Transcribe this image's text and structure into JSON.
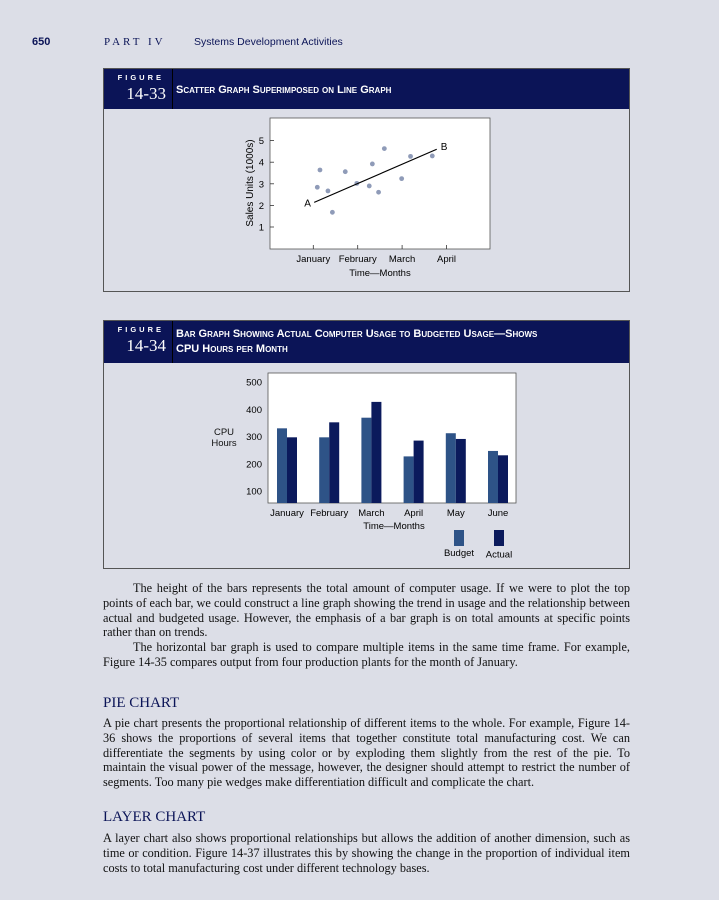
{
  "header": {
    "page_number": "650",
    "part": "PART IV",
    "section": "Systems Development Activities"
  },
  "figures": [
    {
      "word": "FIGURE",
      "number": "14-33",
      "title": "Scatter Graph Superimposed on Line Graph"
    },
    {
      "word": "FIGURE",
      "number": "14-34",
      "title_line1": "Bar Graph Showing Actual Computer Usage to Budgeted Usage—Shows",
      "title_line2": "CPU Hours per Month"
    }
  ],
  "chart_data": [
    {
      "type": "scatter",
      "ylabel": "Sales Units (1000s)",
      "xlabel": "Time—Months",
      "x_ticks": [
        "January",
        "February",
        "March",
        "April"
      ],
      "y_ticks": [
        1,
        2,
        3,
        4,
        5
      ],
      "x_unit": "month index (1 = January)",
      "xlim": [
        -0.05,
        5.05
      ],
      "ylim": [
        0.2,
        5.9
      ],
      "points": [
        [
          1.09,
          2.84
        ],
        [
          1.15,
          3.64
        ],
        [
          1.33,
          2.67
        ],
        [
          1.43,
          1.68
        ],
        [
          1.72,
          3.56
        ],
        [
          1.98,
          3.02
        ],
        [
          2.26,
          2.9
        ],
        [
          2.33,
          3.92
        ],
        [
          2.47,
          2.61
        ],
        [
          2.6,
          4.63
        ],
        [
          2.99,
          3.24
        ],
        [
          3.19,
          4.27
        ],
        [
          3.68,
          4.29
        ]
      ],
      "trend_line": {
        "start": [
          1.02,
          2.14
        ],
        "end": [
          3.78,
          4.6
        ],
        "start_label": "A",
        "end_label": "B"
      },
      "point_color": "#8f9bb8",
      "grid": false
    },
    {
      "type": "bar",
      "ylabel": "CPU Hours",
      "xlabel": "Time—Months",
      "categories": [
        "January",
        "February",
        "March",
        "April",
        "May",
        "June"
      ],
      "y_ticks": [
        100,
        200,
        300,
        400,
        500
      ],
      "ylim": [
        55,
        535
      ],
      "series": [
        {
          "name": "Budget",
          "color": "#2e5387",
          "values": [
            330,
            297,
            369,
            227,
            312,
            247
          ]
        },
        {
          "name": "Actual",
          "color": "#0b1a5c",
          "values": [
            297,
            352,
            427,
            285,
            291,
            231
          ]
        }
      ],
      "legend": "bottom-right",
      "grid": false
    }
  ],
  "body": {
    "p1": "The height of the bars represents the total amount of computer usage. If we were to plot the top points of each bar, we could construct a line graph showing the trend in usage and the relationship between actual and budgeted usage. However, the emphasis of a bar graph is on total amounts at specific points rather than on trends.",
    "p2": "The horizontal bar graph is used to compare multiple items in the same time frame. For example, Figure 14-35 compares output from four production plants for the month of January.",
    "h_pie": "PIE CHART",
    "p3": "A pie chart presents the proportional relationship of different items to the whole. For example, Figure 14-36 shows the proportions of several items that together constitute total manufacturing cost. We can differentiate the segments by using color or by exploding them slightly from the rest of the pie. To maintain the visual power of the message, however, the designer should attempt to restrict the number of segments. Too many pie wedges make differentiation difficult and complicate the chart.",
    "h_layer": "LAYER CHART",
    "p4": "A layer chart also shows proportional relationships but allows the addition of another dimension, such as time or condition. Figure 14-37 illustrates this by showing the change in the proportion of individual item costs to total manufacturing cost under different technology bases."
  },
  "colors": {
    "navy": "#0b1457",
    "page": "#dcdee7"
  }
}
